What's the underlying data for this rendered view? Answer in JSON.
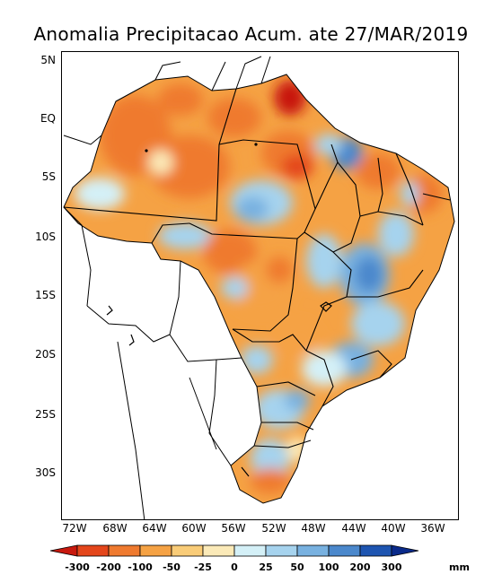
{
  "title": "Anomalia Precipitacao Acum. ate 27/MAR/2019",
  "lat_labels": [
    "5N",
    "EQ",
    "5S",
    "10S",
    "15S",
    "20S",
    "25S",
    "30S"
  ],
  "lon_labels": [
    "72W",
    "68W",
    "64W",
    "60W",
    "56W",
    "52W",
    "48W",
    "44W",
    "40W",
    "36W"
  ],
  "colorbar": {
    "labels": [
      "-300",
      "-200",
      "-100",
      "-50",
      "-25",
      "0",
      "25",
      "50",
      "100",
      "200",
      "300"
    ],
    "colors": [
      "#c8190e",
      "#e4461b",
      "#ef7a2f",
      "#f5a244",
      "#f9cc78",
      "#fbeab8",
      "#d4f0f7",
      "#a6d3ee",
      "#78b1e0",
      "#4b88cc",
      "#1e55b1",
      "#0a2a8a"
    ],
    "unit": "mm"
  }
}
